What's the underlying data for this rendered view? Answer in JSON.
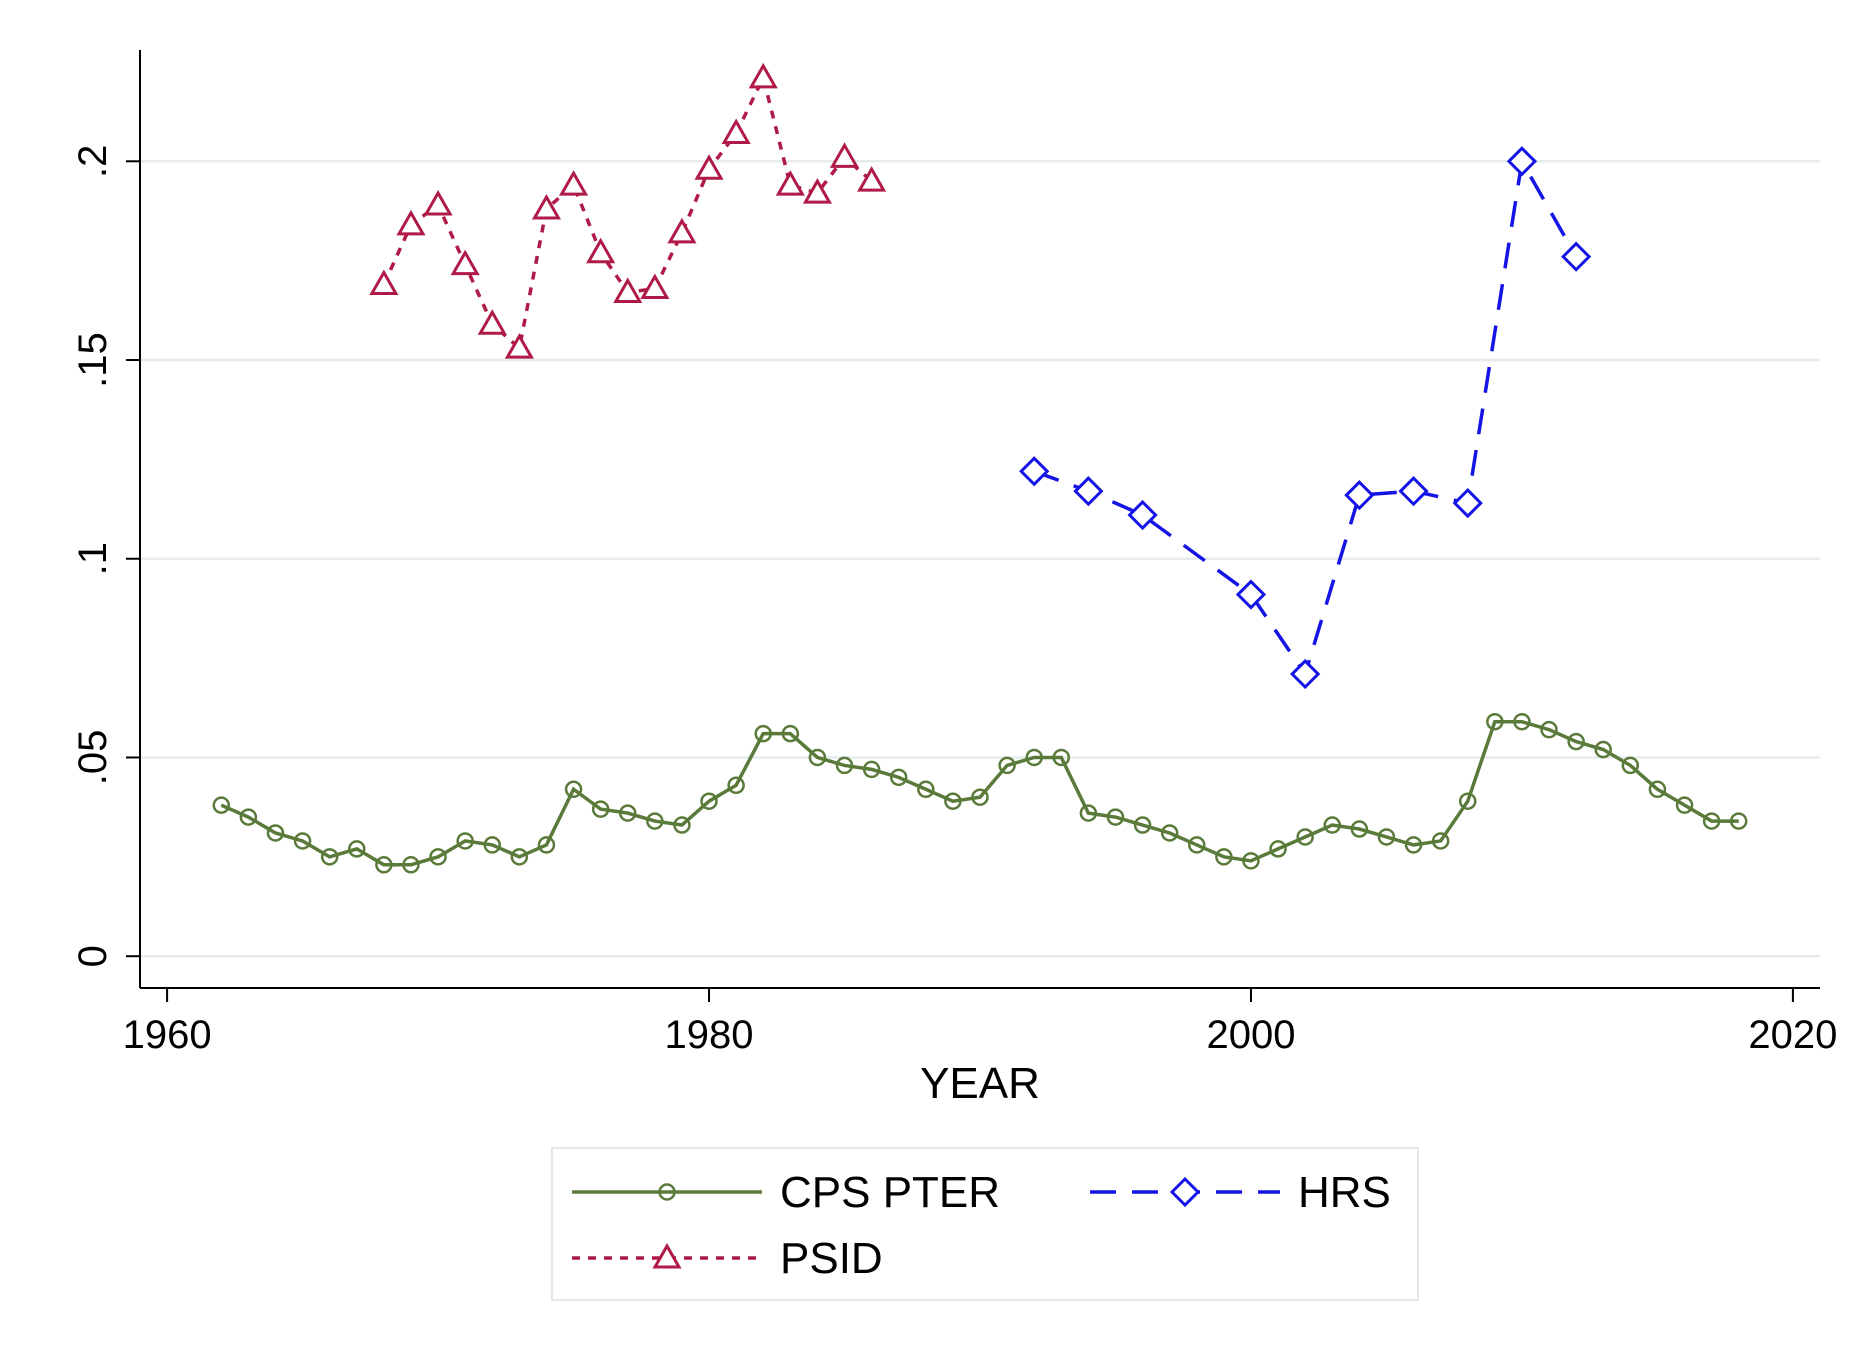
{
  "chart_data": {
    "type": "line",
    "title": "",
    "xlabel": "YEAR",
    "ylabel": "",
    "xlim": [
      1959,
      2021
    ],
    "ylim": [
      -0.008,
      0.228
    ],
    "xticks": [
      1960,
      1980,
      2000,
      2020
    ],
    "xtick_labels": [
      "1960",
      "1980",
      "2000",
      "2020"
    ],
    "yticks": [
      0,
      0.05,
      0.1,
      0.15,
      0.2
    ],
    "ytick_labels": [
      "0",
      ".05",
      ".1",
      ".15",
      ".2"
    ],
    "grid": "horizontal",
    "legend_position": "bottom",
    "series": [
      {
        "name": "CPS PTER",
        "color": "#5a7a3a",
        "dash": "solid",
        "marker": "circle",
        "x": [
          1962,
          1963,
          1964,
          1965,
          1966,
          1967,
          1968,
          1969,
          1970,
          1971,
          1972,
          1973,
          1974,
          1975,
          1976,
          1977,
          1978,
          1979,
          1980,
          1981,
          1982,
          1983,
          1984,
          1985,
          1986,
          1987,
          1988,
          1989,
          1990,
          1991,
          1992,
          1993,
          1994,
          1995,
          1996,
          1997,
          1998,
          1999,
          2000,
          2001,
          2002,
          2003,
          2004,
          2005,
          2006,
          2007,
          2008,
          2009,
          2010,
          2011,
          2012,
          2013,
          2014,
          2015,
          2016,
          2017,
          2018
        ],
        "y": [
          0.038,
          0.035,
          0.031,
          0.029,
          0.025,
          0.027,
          0.023,
          0.023,
          0.025,
          0.029,
          0.028,
          0.025,
          0.028,
          0.042,
          0.037,
          0.036,
          0.034,
          0.033,
          0.039,
          0.043,
          0.056,
          0.056,
          0.05,
          0.048,
          0.047,
          0.045,
          0.042,
          0.039,
          0.04,
          0.048,
          0.05,
          0.05,
          0.036,
          0.035,
          0.033,
          0.031,
          0.028,
          0.025,
          0.024,
          0.027,
          0.03,
          0.033,
          0.032,
          0.03,
          0.028,
          0.029,
          0.039,
          0.059,
          0.059,
          0.057,
          0.054,
          0.052,
          0.048,
          0.042,
          0.038,
          0.034,
          0.034
        ]
      },
      {
        "name": "HRS",
        "color": "#1414e6",
        "dash": "long-dash",
        "marker": "diamond",
        "x": [
          1992,
          1994,
          1996,
          2000,
          2002,
          2004,
          2006,
          2008,
          2010,
          2012
        ],
        "y": [
          0.122,
          0.117,
          0.111,
          0.091,
          0.071,
          0.116,
          0.117,
          0.114,
          0.2,
          0.176
        ]
      },
      {
        "name": "PSID",
        "color": "#b01a47",
        "dash": "short-dash",
        "marker": "triangle",
        "x": [
          1968,
          1969,
          1970,
          1971,
          1972,
          1973,
          1974,
          1975,
          1976,
          1977,
          1978,
          1979,
          1980,
          1981,
          1982,
          1983,
          1984,
          1985,
          1986
        ],
        "y": [
          0.169,
          0.184,
          0.189,
          0.174,
          0.159,
          0.153,
          0.188,
          0.194,
          0.177,
          0.167,
          0.168,
          0.182,
          0.198,
          0.207,
          0.221,
          0.194,
          0.192,
          0.201,
          0.195
        ]
      }
    ]
  }
}
